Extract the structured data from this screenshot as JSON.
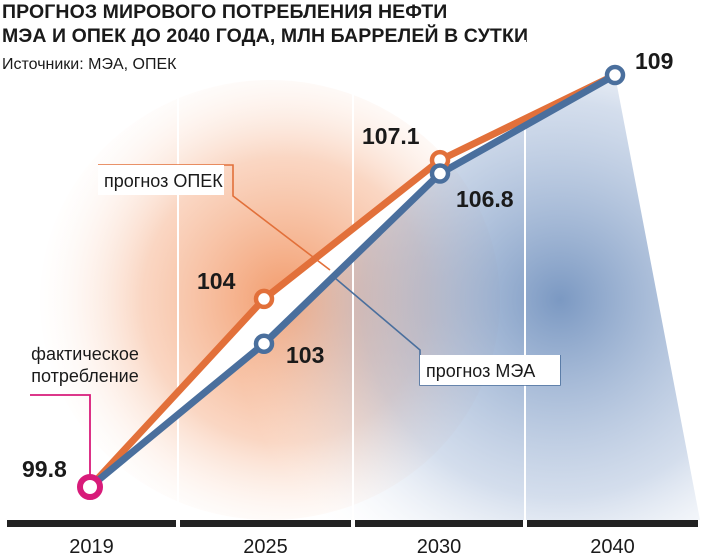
{
  "header": {
    "title_line1": "ПРОГНОЗ МИРОВОГО ПОТРЕБЛЕНИЯ НЕФТИ",
    "title_line2": "МЭА И ОПЕК ДО 2040 ГОДА, МЛН БАРРЕЛЕЙ В СУТКИ",
    "source": "Источники: МЭА, ОПЕК"
  },
  "colors": {
    "opec": "#e2703a",
    "iea": "#4a6f9d",
    "actual": "#d81b7a",
    "axis": "#222222",
    "grid": "#ffffff"
  },
  "chart_data": {
    "type": "line",
    "title": "ПРОГНОЗ МИРОВОГО ПОТРЕБЛЕНИЯ НЕФТИ МЭА И ОПЕК ДО 2040 ГОДА, МЛН БАРРЕЛЕЙ В СУТКИ",
    "x": [
      "2019",
      "2025",
      "2030",
      "2040"
    ],
    "xlabel": "",
    "ylabel": "",
    "ylim": [
      99.8,
      109
    ],
    "grid": true,
    "actual": {
      "name": "фактическое потребление",
      "x": "2019",
      "value": 99.8,
      "label": "99.8"
    },
    "series": [
      {
        "name": "прогноз ОПЕК",
        "x": [
          "2019",
          "2025",
          "2030",
          "2040"
        ],
        "values": [
          99.8,
          104,
          107.1,
          109
        ],
        "labels": [
          "",
          "104",
          "107.1",
          ""
        ]
      },
      {
        "name": "прогноз МЭА",
        "x": [
          "2019",
          "2025",
          "2030",
          "2040"
        ],
        "values": [
          99.8,
          103,
          106.8,
          109
        ],
        "labels": [
          "",
          "103",
          "106.8",
          "109"
        ]
      }
    ]
  }
}
